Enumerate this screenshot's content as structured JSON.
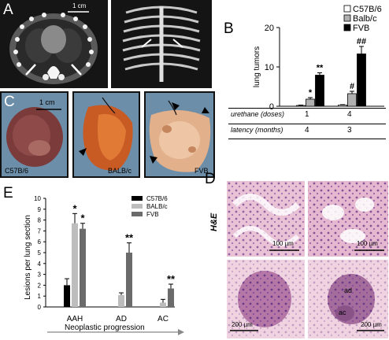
{
  "panels": {
    "A": {
      "label": "A",
      "scale_bar": "1 cm"
    },
    "B": {
      "label": "B",
      "row_labels": [
        "urethane (doses)",
        "latency (months)"
      ],
      "row_values": [
        [
          "1",
          "4"
        ],
        [
          "4",
          "3"
        ]
      ]
    },
    "C": {
      "label": "C",
      "scale_bar": "1 cm",
      "strains": [
        "C57B/6",
        "BALB/c",
        "FVB"
      ]
    },
    "D": {
      "label": "D",
      "stain": "H&E",
      "scale_bars": [
        "100 µm",
        "100 µm",
        "200 µm",
        "200 µm"
      ],
      "annotations": [
        "ad",
        "ac"
      ]
    },
    "E": {
      "label": "E",
      "x_axis_arrow_label": "Neoplastic progression"
    }
  },
  "chart_data": [
    {
      "panel": "B",
      "type": "bar",
      "ylabel": "lung tumors",
      "ylim": [
        0,
        20
      ],
      "yticks": [
        0,
        10,
        20
      ],
      "legend_placement": "top-right",
      "groups": [
        {
          "urethane_doses": "1",
          "latency_months": "4"
        },
        {
          "urethane_doses": "4",
          "latency_months": "3"
        }
      ],
      "series": [
        {
          "name": "C57B/6",
          "color": "#ffffff",
          "values": [
            0.2,
            0.3
          ],
          "errors": [
            0.1,
            0.1
          ],
          "annotations": [
            "",
            ""
          ]
        },
        {
          "name": "Balb/c",
          "color": "#b0b0b0",
          "values": [
            1.8,
            3.2
          ],
          "errors": [
            0.4,
            0.6
          ],
          "annotations": [
            "*",
            "#"
          ]
        },
        {
          "name": "FVB",
          "color": "#000000",
          "values": [
            7.9,
            13.3
          ],
          "errors": [
            0.6,
            1.9
          ],
          "annotations": [
            "**",
            "##"
          ]
        }
      ]
    },
    {
      "panel": "E",
      "type": "bar",
      "ylabel": "Lesions per lung section",
      "ylim": [
        0,
        10
      ],
      "yticks": [
        0,
        1,
        2,
        3,
        4,
        5,
        6,
        7,
        8,
        9,
        10
      ],
      "categories": [
        "AAH",
        "AD",
        "AC"
      ],
      "legend_placement": "top-right",
      "series": [
        {
          "name": "C57B/6",
          "color": "#000000",
          "values": [
            2.0,
            0.0,
            0.0
          ],
          "errors": [
            0.6,
            0,
            0
          ],
          "annotations": [
            "",
            "",
            ""
          ]
        },
        {
          "name": "BALB/c",
          "color": "#bdbdbd",
          "values": [
            7.7,
            1.1,
            0.4
          ],
          "errors": [
            0.9,
            0.2,
            0.3
          ],
          "annotations": [
            "*",
            "",
            ""
          ]
        },
        {
          "name": "FVB",
          "color": "#6b6b6b",
          "values": [
            7.2,
            5.0,
            1.7
          ],
          "errors": [
            0.5,
            0.9,
            0.4
          ],
          "annotations": [
            "*",
            "**",
            "**"
          ]
        }
      ]
    }
  ]
}
